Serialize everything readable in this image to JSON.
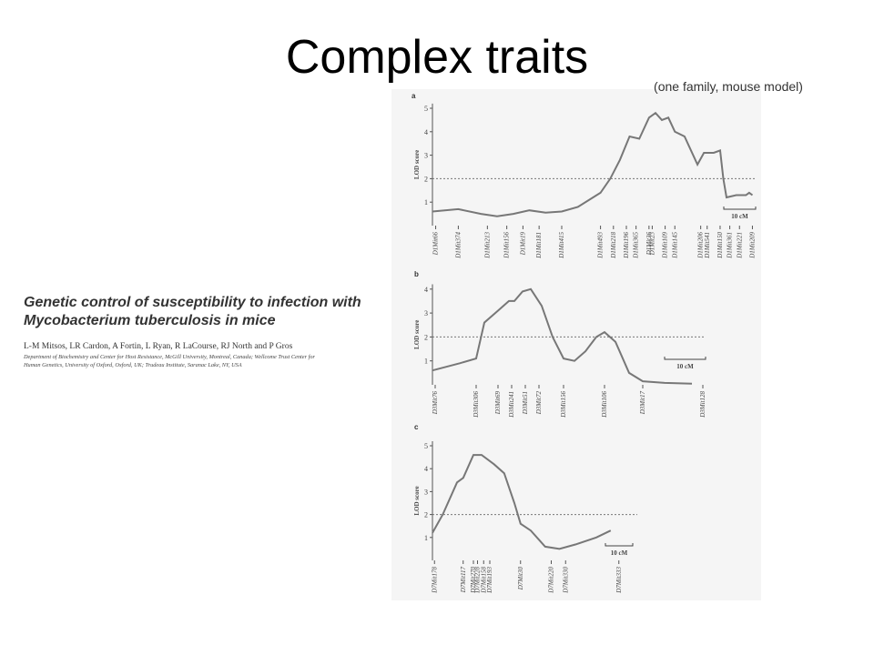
{
  "slide": {
    "title": "Complex traits",
    "subtitle": "(one family, mouse model)"
  },
  "paper": {
    "title_lines": [
      "Genetic control of susceptibility to infection with",
      "Mycobacterium tuberculosis in mice"
    ],
    "authors": "L-M Mitsos, LR Cardon, A Fortin, L Ryan, R LaCourse, RJ North and P Gros",
    "affiliation_lines": [
      "Department of Biochemistry and Center for Host Resistance, McGill University, Montreal, Canada; Wellcome Trust Center for",
      "Human Genetics, University of Oxford, Oxford, UK; Trudeau Institute, Saranac Lake, NY, USA"
    ]
  },
  "chart_data": [
    {
      "type": "line",
      "panel": "a",
      "ylabel": "LOD score",
      "scale_label": "10 cM",
      "color": "#777777",
      "threshold": 2,
      "x": [
        0,
        8,
        15,
        20,
        25,
        30,
        35,
        40,
        45,
        52,
        55,
        58,
        61,
        64,
        67,
        69,
        71,
        73,
        75,
        78,
        80,
        82,
        84,
        87,
        89,
        90,
        91,
        94,
        97,
        98,
        99
      ],
      "values": [
        0.6,
        0.7,
        0.5,
        0.4,
        0.5,
        0.65,
        0.55,
        0.6,
        0.8,
        1.4,
        2.0,
        2.8,
        3.8,
        3.7,
        4.6,
        4.8,
        4.5,
        4.6,
        4.0,
        3.8,
        3.2,
        2.6,
        3.1,
        3.1,
        3.2,
        2.0,
        1.2,
        1.3,
        1.3,
        1.4,
        1.3
      ],
      "xlim": [
        0,
        100
      ],
      "ylim": [
        0,
        5.2
      ],
      "yticks": [
        1,
        2,
        3,
        4,
        5
      ],
      "xticks": [
        {
          "value": 1,
          "label": "D1Mit66"
        },
        {
          "value": 8,
          "label": "D1Mit374"
        },
        {
          "value": 17,
          "label": "D1Mit213"
        },
        {
          "value": 23,
          "label": "D1Mit156"
        },
        {
          "value": 28,
          "label": "D1Mit19"
        },
        {
          "value": 33,
          "label": "D1Mit181"
        },
        {
          "value": 40,
          "label": "D1Mit415"
        },
        {
          "value": 52,
          "label": "D1Mit493"
        },
        {
          "value": 56,
          "label": "D1Mit218"
        },
        {
          "value": 60,
          "label": "D1Mit196"
        },
        {
          "value": 63,
          "label": "D1Mit365"
        },
        {
          "value": 67,
          "label": "D1Mit36"
        },
        {
          "value": 68,
          "label": "D1Mit23"
        },
        {
          "value": 72,
          "label": "D1Mit109"
        },
        {
          "value": 75,
          "label": "D1Mit145"
        },
        {
          "value": 83,
          "label": "D1Mit206"
        },
        {
          "value": 85,
          "label": "D1Mit541"
        },
        {
          "value": 89,
          "label": "D1Mit150"
        },
        {
          "value": 92,
          "label": "D1Mit361"
        },
        {
          "value": 95,
          "label": "D1Mit221"
        },
        {
          "value": 99,
          "label": "D1Mit209"
        }
      ]
    },
    {
      "type": "line",
      "panel": "b",
      "ylabel": "LOD score",
      "scale_label": "10 cM",
      "color": "#777777",
      "threshold": 2,
      "x": [
        0,
        10,
        16,
        19,
        24,
        28,
        30,
        33,
        36,
        40,
        44,
        48,
        52,
        56,
        60,
        63,
        67,
        72,
        77,
        85,
        95
      ],
      "values": [
        0.6,
        0.9,
        1.1,
        2.6,
        3.1,
        3.5,
        3.5,
        3.9,
        4.0,
        3.3,
        2.0,
        1.1,
        1.0,
        1.4,
        2.0,
        2.2,
        1.8,
        0.5,
        0.15,
        0.08,
        0.05
      ],
      "xlim": [
        0,
        100
      ],
      "ylim": [
        0,
        4.2
      ],
      "yticks": [
        1,
        2,
        3,
        4
      ],
      "xticks": [
        {
          "value": 1,
          "label": "D3Mit76"
        },
        {
          "value": 16,
          "label": "D3Mit306"
        },
        {
          "value": 24,
          "label": "D3Mit69"
        },
        {
          "value": 29,
          "label": "D3Mit241"
        },
        {
          "value": 34,
          "label": "D3Mit51"
        },
        {
          "value": 39,
          "label": "D3Mit72"
        },
        {
          "value": 48,
          "label": "D3Mit156"
        },
        {
          "value": 63,
          "label": "D3Mit106"
        },
        {
          "value": 77,
          "label": "D3Mit17"
        },
        {
          "value": 99,
          "label": "D3Mit128"
        }
      ]
    },
    {
      "type": "line",
      "panel": "c",
      "ylabel": "LOD score",
      "scale_label": "10 cM",
      "color": "#777777",
      "threshold": 2,
      "x": [
        0,
        5,
        12,
        15,
        20,
        24,
        30,
        35,
        40,
        43,
        48,
        55,
        62,
        70,
        80,
        87
      ],
      "values": [
        1.2,
        2.0,
        3.4,
        3.6,
        4.6,
        4.6,
        4.2,
        3.8,
        2.5,
        1.6,
        1.3,
        0.6,
        0.5,
        0.7,
        1.0,
        1.3
      ],
      "xlim": [
        0,
        100
      ],
      "ylim": [
        0,
        5.2
      ],
      "yticks": [
        1,
        2,
        3,
        4,
        5
      ],
      "xticks": [
        {
          "value": 1,
          "label": "D7Mit178"
        },
        {
          "value": 15,
          "label": "D7Mit117"
        },
        {
          "value": 20,
          "label": "D7Mit270"
        },
        {
          "value": 22,
          "label": "D7Mit228"
        },
        {
          "value": 25,
          "label": "D7Mit158"
        },
        {
          "value": 28,
          "label": "D7Mit193"
        },
        {
          "value": 43,
          "label": "D7Mit30"
        },
        {
          "value": 58,
          "label": "D7Mit220"
        },
        {
          "value": 65,
          "label": "D7Mit330"
        },
        {
          "value": 91,
          "label": "D7Mit333"
        }
      ]
    }
  ]
}
